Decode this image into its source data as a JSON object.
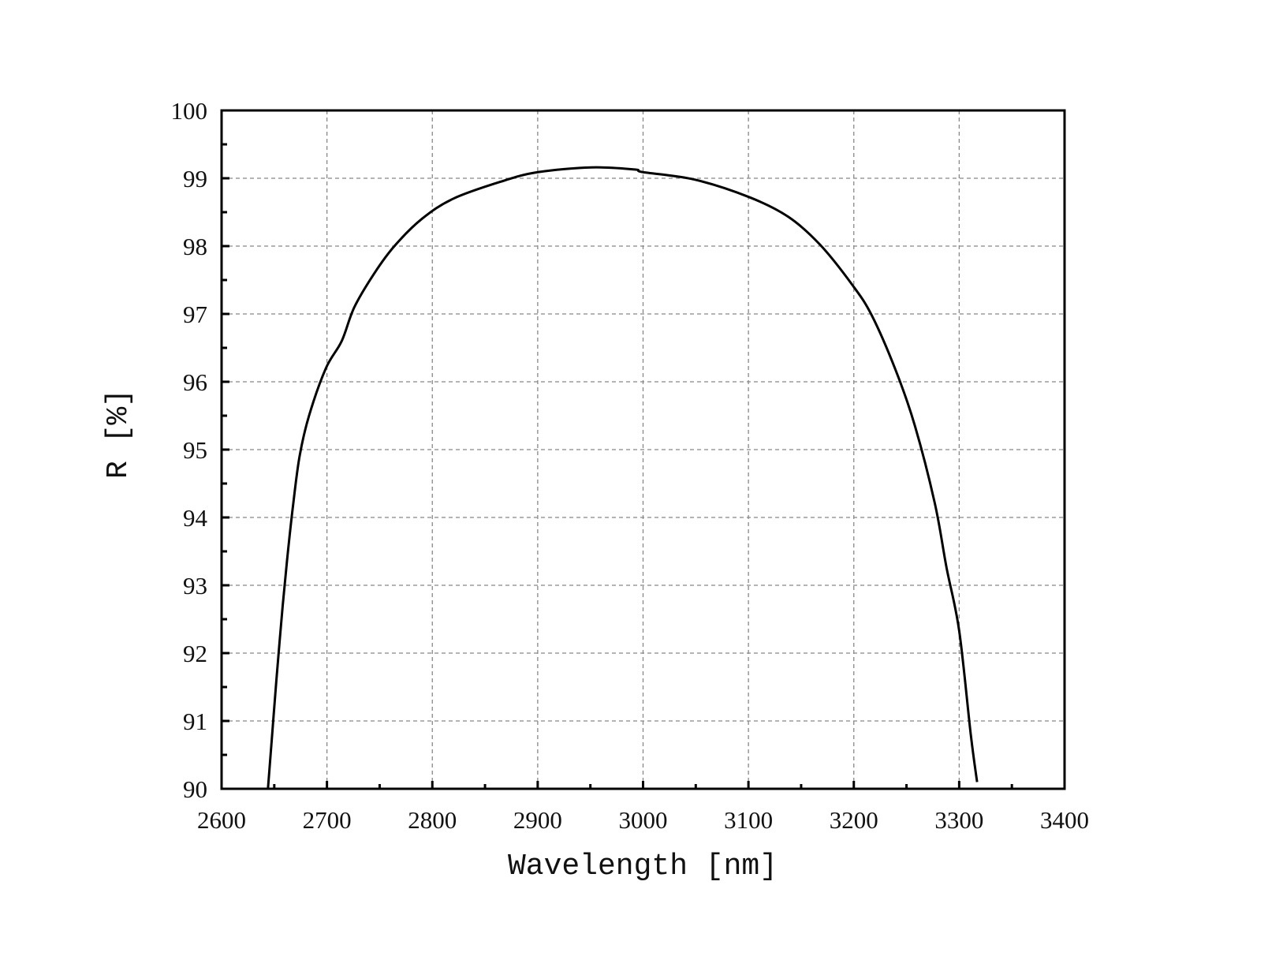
{
  "chart_data": {
    "type": "line",
    "title": "",
    "xlabel": "Wavelength [nm]",
    "ylabel": "R [%]",
    "xlim": [
      2600,
      3400
    ],
    "ylim": [
      90,
      100
    ],
    "xticks": [
      2600,
      2700,
      2800,
      2900,
      3000,
      3100,
      3200,
      3300,
      3400
    ],
    "yticks": [
      90,
      91,
      92,
      93,
      94,
      95,
      96,
      97,
      98,
      99,
      100
    ],
    "xtick_labels": [
      "2600",
      "2700",
      "2800",
      "2900",
      "3000",
      "3100",
      "3200",
      "3300",
      "3400"
    ],
    "ytick_labels": [
      "90",
      "91",
      "92",
      "93",
      "94",
      "95",
      "96",
      "97",
      "98",
      "99",
      "100"
    ],
    "grid": true,
    "legend": "none",
    "series": [
      {
        "name": "R",
        "color": "#000000",
        "x": [
          2644,
          2648,
          2652,
          2658,
          2663,
          2668,
          2674,
          2683,
          2699,
          2714,
          2726,
          2745,
          2764,
          2790,
          2820,
          2865,
          2900,
          2951,
          2992,
          3000,
          3049,
          3101,
          3138,
          3168,
          3198,
          3217,
          3240,
          3258,
          3277,
          3288,
          3300,
          3311,
          3317
        ],
        "y": [
          90.0,
          90.8,
          91.6,
          92.7,
          93.5,
          94.2,
          94.9,
          95.5,
          96.2,
          96.6,
          97.1,
          97.6,
          98.0,
          98.4,
          98.7,
          98.95,
          99.09,
          99.16,
          99.13,
          99.09,
          98.98,
          98.72,
          98.43,
          98.02,
          97.44,
          96.98,
          96.16,
          95.35,
          94.2,
          93.26,
          92.33,
          90.8,
          90.1
        ]
      }
    ]
  }
}
